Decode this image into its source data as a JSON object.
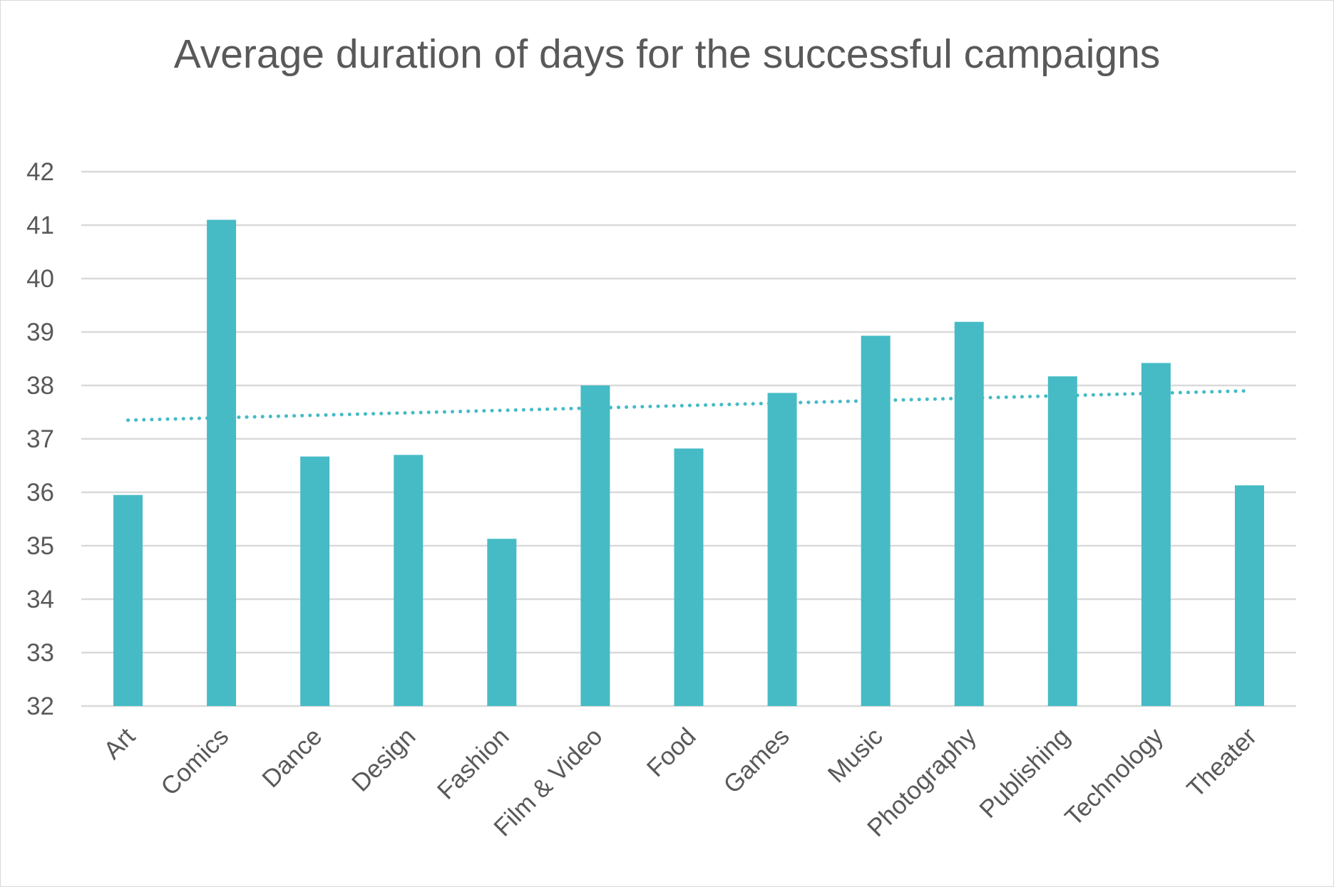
{
  "chart_data": {
    "type": "bar",
    "title": "Average duration of days for the successful campaigns",
    "xlabel": "",
    "ylabel": "",
    "categories": [
      "Art",
      "Comics",
      "Dance",
      "Design",
      "Fashion",
      "Film & Video",
      "Food",
      "Games",
      "Music",
      "Photography",
      "Publishing",
      "Technology",
      "Theater"
    ],
    "values": [
      35.95,
      41.1,
      36.67,
      36.7,
      35.13,
      38.0,
      36.82,
      37.86,
      38.93,
      39.19,
      38.17,
      38.42,
      36.13
    ],
    "ylim": [
      32,
      42
    ],
    "yticks": [
      "32",
      "33",
      "34",
      "35",
      "36",
      "37",
      "38",
      "39",
      "40",
      "41",
      "42"
    ],
    "trendline": {
      "type": "linear",
      "style": "dotted",
      "start": 37.35,
      "end": 37.9
    },
    "grid": true,
    "legend": "none",
    "colors": {
      "bar": "#46bbc5",
      "trendline": "#46bbc5",
      "grid": "#d9d9d9",
      "text": "#595959"
    }
  }
}
